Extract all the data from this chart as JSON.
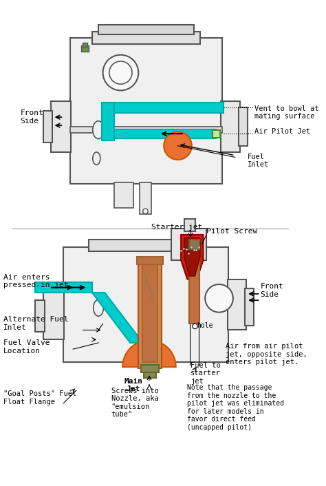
{
  "bg_color": "#ffffff",
  "carb_outline_color": "#aaaaaa",
  "cyan_color": "#00cccc",
  "orange_color": "#e87030",
  "red_color": "#cc2200",
  "dark_olive": "#556b2f",
  "gray": "#888888",
  "black": "#000000",
  "text_color": "#000000",
  "top_diagram": {
    "title": "",
    "labels": {
      "vent": "Vent to bowl at\nmating surface",
      "air_pilot": "Air Pilot Jet",
      "fuel_inlet": "Fuel\nInlet",
      "front_side": "Front\nSide"
    }
  },
  "bottom_diagram": {
    "labels": {
      "starter_jet": "Starter jet",
      "pilot_screw": "Pilot Screw",
      "air_enters": "Air enters\npressed-in jet",
      "alt_fuel": "Alternate Fuel\nInlet",
      "fuel_valve": "Fuel Valve\nLocation",
      "main_jet": "Main\nJet",
      "goal_posts": "\"Goal Posts\" Fuel\nFloat Flange",
      "screws_into": "Screws into\nNozzle, aka\n\"emulsion\ntube\"",
      "fuel_to_starter": "Fuel to\nstarter\njet",
      "air_from": "Air from air pilot\njet, opposite side,\nenters pilot jet.",
      "note": "Note that the passage\nfrom the nozzle to the\npilot jet was eliminated\nfor later models in\nfavor direct feed\n(uncapped pilot)",
      "hole": "hole",
      "front_side": "Front\nSide"
    }
  }
}
